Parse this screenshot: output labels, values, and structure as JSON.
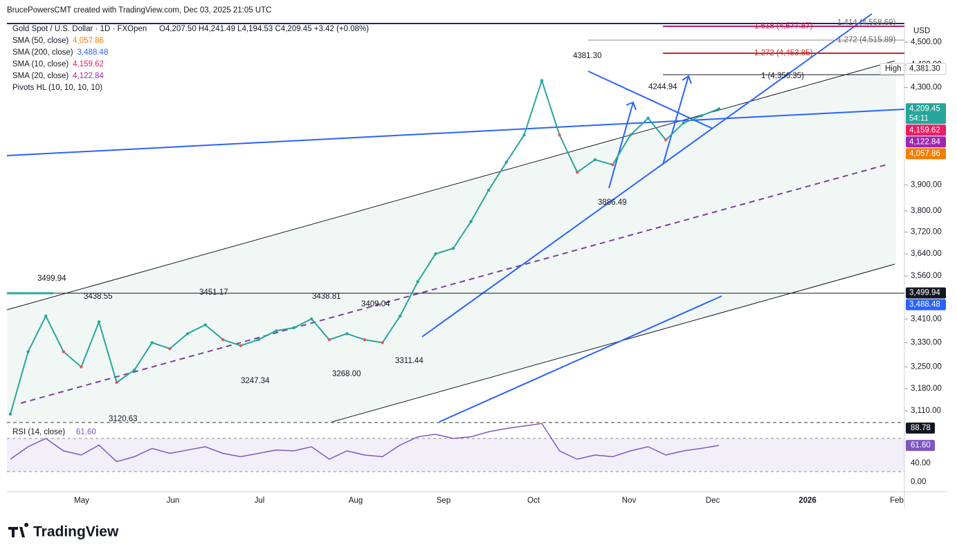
{
  "header": "BrucePowersCMT created with TradingView.com, Dec 03, 2025 21:05 UTC",
  "symbol": "Gold Spot / U.S. Dollar · 1D · FXOpen",
  "ohlc": "O4,207.50 H4,241.49 L4,194.53 C4,209.45 +3.42 (+0.08%)",
  "indicators": [
    {
      "label": "SMA (50, close)",
      "value": "4,057.86",
      "color": "#f57c00"
    },
    {
      "label": "SMA (200, close)",
      "value": "3,488.48",
      "color": "#2962ff"
    },
    {
      "label": "SMA (10, close)",
      "value": "4,159.62",
      "color": "#e91e63"
    },
    {
      "label": "SMA (20, close)",
      "value": "4,122.84",
      "color": "#9c27b0"
    },
    {
      "label": "Pivots HL (10, 10, 10, 10)"
    }
  ],
  "currency": "USD",
  "price_axis": {
    "log": true,
    "ylim": [
      3076,
      4588
    ],
    "ticks": [
      {
        "value": 4500,
        "label": "4,500.00"
      },
      {
        "value": 4400,
        "label": "4,400.00"
      },
      {
        "value": 4300,
        "label": "4,300.00"
      },
      {
        "value": 3900,
        "label": "3,900.00"
      },
      {
        "value": 3800,
        "label": "3,800.00"
      },
      {
        "value": 3720,
        "label": "3,720.00"
      },
      {
        "value": 3640,
        "label": "3,640.00"
      },
      {
        "value": 3560,
        "label": "3,560.00"
      },
      {
        "value": 3410,
        "label": "3,410.00"
      },
      {
        "value": 3330,
        "label": "3,330.00"
      },
      {
        "value": 3250,
        "label": "3,250.00"
      },
      {
        "value": 3180,
        "label": "3,180.00"
      },
      {
        "value": 3110,
        "label": "3,110.00"
      }
    ]
  },
  "badges": [
    {
      "value": 4381.3,
      "label": "4,381.30",
      "tag": "High",
      "color": "#ffffff"
    },
    {
      "value": 4209.45,
      "label": "4,209.45",
      "sub": "54:11",
      "color": "#26a69a"
    },
    {
      "value": 4159.62,
      "label": "4,159.62",
      "color": "#e91e63"
    },
    {
      "value": 4122.84,
      "label": "4,122.84",
      "color": "#9c27b0"
    },
    {
      "value": 4057.86,
      "label": "4,057.86",
      "color": "#f57c00"
    },
    {
      "value": 3499.94,
      "label": "3,499.94",
      "color": "#131722"
    },
    {
      "value": 3488.48,
      "label": "3,488.48",
      "color": "#2962ff"
    }
  ],
  "fib_levels": [
    "1.618 (4,577.87)",
    "1.414 (4,558.69)",
    "1.272 (4,515.89)",
    "1.272 (4,453.85)",
    "1 (4,356.35)"
  ],
  "pivots": [
    "4381.30",
    "4244.94",
    "3886.49",
    "3499.94",
    "3438.55",
    "3451.17",
    "3438.81",
    "3409.04",
    "3311.44",
    "3247.34",
    "3268.00",
    "3120.63"
  ],
  "closes": [
    3100,
    3300,
    3420,
    3300,
    3250,
    3400,
    3200,
    3240,
    3330,
    3310,
    3360,
    3390,
    3340,
    3320,
    3340,
    3370,
    3380,
    3410,
    3340,
    3360,
    3340,
    3330,
    3420,
    3540,
    3640,
    3660,
    3760,
    3880,
    3990,
    4100,
    4330,
    4100,
    3950,
    4000,
    3980,
    4100,
    4170,
    4080,
    4150,
    4180,
    4209.45
  ],
  "rsi": {
    "label": "RSI (14, close)",
    "value": "61.60",
    "ticks": [
      {
        "value": 88.78,
        "label": "88.78"
      },
      {
        "value": 61.6,
        "label": "61.60"
      },
      {
        "value": 40,
        "label": "40.00"
      },
      {
        "value": 0,
        "label": "0.00"
      }
    ],
    "values": [
      45,
      60,
      70,
      55,
      50,
      62,
      42,
      48,
      58,
      52,
      56,
      60,
      52,
      48,
      52,
      56,
      55,
      60,
      45,
      55,
      50,
      48,
      62,
      72,
      75,
      70,
      72,
      78,
      82,
      85,
      88,
      55,
      45,
      50,
      48,
      55,
      60,
      50,
      55,
      58,
      61.6
    ]
  },
  "months": [
    "May",
    "Jun",
    "Jul",
    "Aug",
    "Sep",
    "Oct",
    "Nov",
    "Dec",
    "2026",
    "Feb"
  ],
  "logo": "TradingView"
}
